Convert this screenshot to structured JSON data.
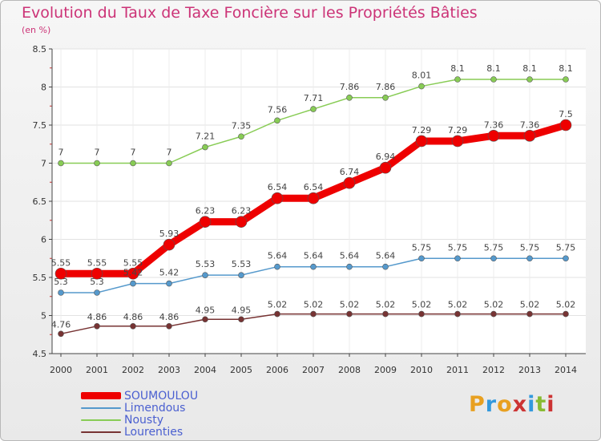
{
  "header": {
    "title": "Evolution du Taux de Taxe Foncière sur les Propriétés Bâties",
    "subtitle": "(en %)"
  },
  "logo": {
    "text": "Proxiti"
  },
  "chart_data": {
    "type": "line",
    "title": "Evolution du Taux de Taxe Foncière sur les Propriétés Bâties",
    "subtitle": "(en %)",
    "x": [
      "2000",
      "2001",
      "2002",
      "2003",
      "2004",
      "2005",
      "2006",
      "2007",
      "2008",
      "2009",
      "2010",
      "2011",
      "2012",
      "2013",
      "2014"
    ],
    "ylim": [
      4.5,
      8.5
    ],
    "yticks": [
      4.5,
      5,
      5.5,
      6,
      6.5,
      7,
      7.5,
      8,
      8.5
    ],
    "legend_position": "bottom-left",
    "series": [
      {
        "name": "SOUMOULOU",
        "color": "#ee0000",
        "values": [
          5.55,
          5.55,
          5.55,
          5.93,
          6.23,
          6.23,
          6.54,
          6.54,
          6.74,
          6.94,
          7.29,
          7.29,
          7.36,
          7.36,
          7.5
        ],
        "labels": [
          "5.55",
          "5.55",
          "5.55",
          "5.93",
          "6.23",
          "6.23",
          "6.54",
          "6.54",
          "6.74",
          "6.94",
          "7.29",
          "7.29",
          "7.36",
          "7.36",
          "7.5"
        ]
      },
      {
        "name": "Limendous",
        "color": "#5599cc",
        "values": [
          5.3,
          5.3,
          5.42,
          5.42,
          5.53,
          5.53,
          5.64,
          5.64,
          5.64,
          5.64,
          5.75,
          5.75,
          5.75,
          5.75,
          5.75
        ],
        "labels": [
          "5.3",
          "5.3",
          "5.42",
          "5.42",
          "5.53",
          "5.53",
          "5.64",
          "5.64",
          "5.64",
          "5.64",
          "5.75",
          "5.75",
          "5.75",
          "5.75",
          "5.75"
        ]
      },
      {
        "name": "Nousty",
        "color": "#88cc55",
        "values": [
          7,
          7,
          7,
          7,
          7.21,
          7.35,
          7.56,
          7.71,
          7.86,
          7.86,
          8.01,
          8.1,
          8.1,
          8.1,
          8.1
        ],
        "labels": [
          "7",
          "7",
          "7",
          "7",
          "7.21",
          "7.35",
          "7.56",
          "7.71",
          "7.86",
          "7.86",
          "8.01",
          "8.1",
          "8.1",
          "8.1",
          "8.1"
        ]
      },
      {
        "name": "Lourenties",
        "color": "#773333",
        "values": [
          4.76,
          4.86,
          4.86,
          4.86,
          4.95,
          4.95,
          5.02,
          5.02,
          5.02,
          5.02,
          5.02,
          5.02,
          5.02,
          5.02,
          5.02
        ],
        "labels": [
          "4.76",
          "4.86",
          "4.86",
          "4.86",
          "4.95",
          "4.95",
          "5.02",
          "5.02",
          "5.02",
          "5.02",
          "5.02",
          "5.02",
          "5.02",
          "5.02",
          "5.02"
        ]
      }
    ]
  }
}
